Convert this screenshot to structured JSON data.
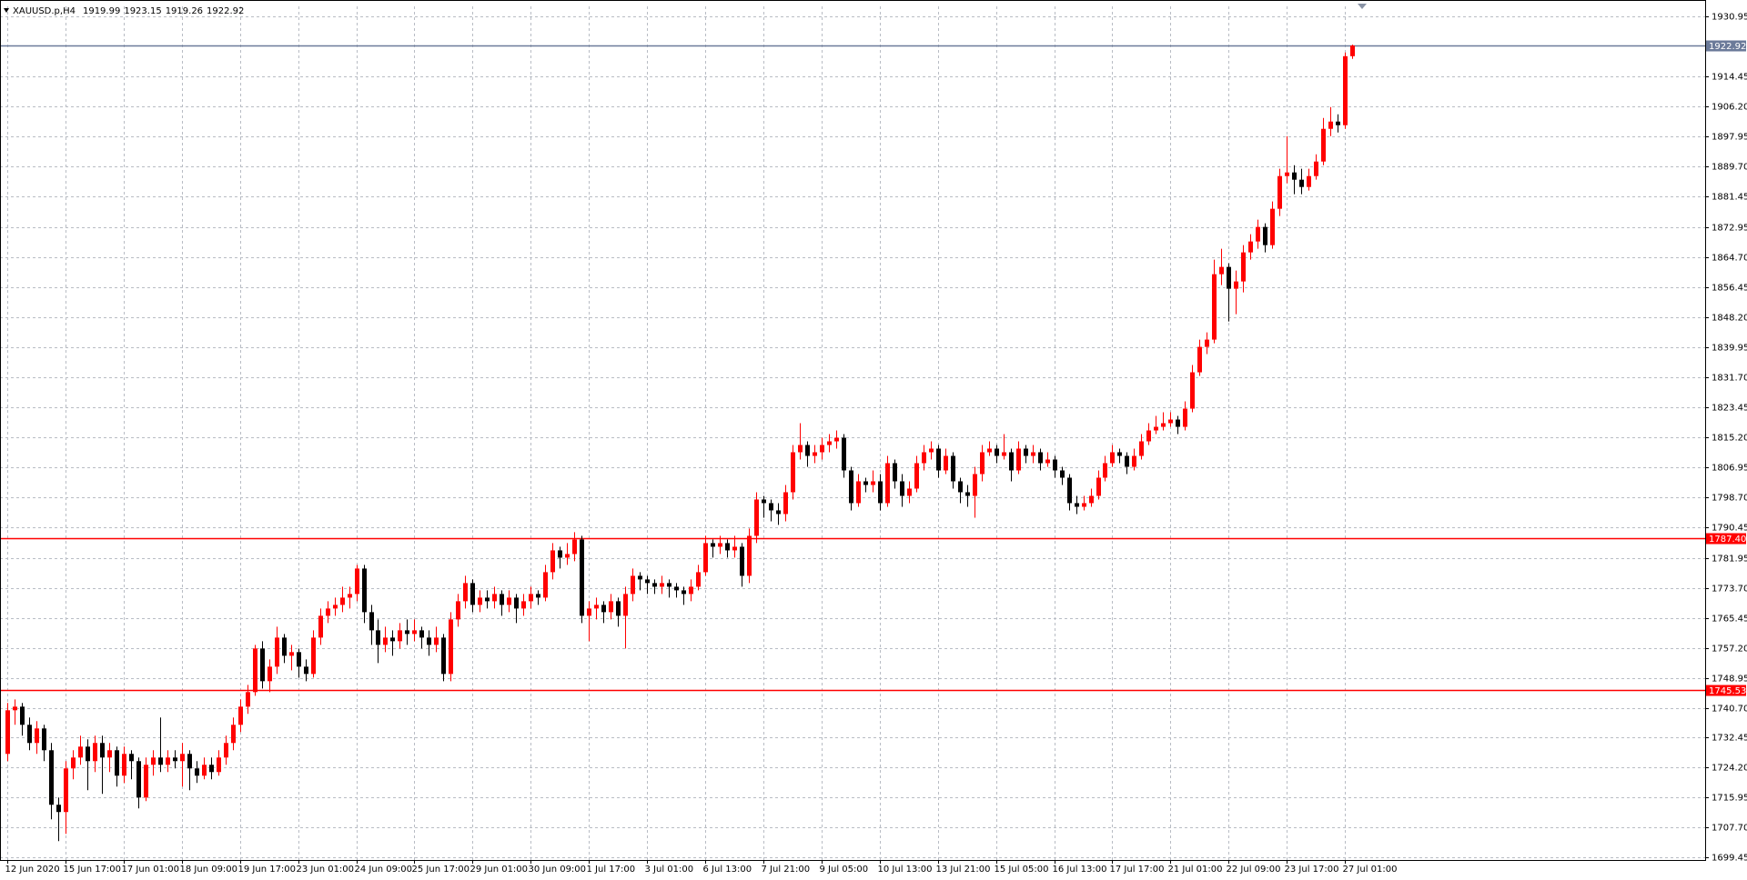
{
  "chart_data": {
    "type": "candlestick",
    "title": "XAUUSD.p,H4",
    "up_color": "#ff0000",
    "down_color": "#000000",
    "grid": true,
    "ylim": [
      1698.8,
      1933.7
    ],
    "yticks": [
      1930.95,
      1914.45,
      {
        "value": 1906.2,
        "label": "1906.20"
      },
      1897.95,
      {
        "value": 1889.7,
        "label": "1889.70"
      },
      1881.45,
      1872.95,
      {
        "value": 1864.7,
        "label": "1864.70"
      },
      1856.45,
      {
        "value": 1848.2,
        "label": "1848.20"
      },
      1839.95,
      {
        "value": 1831.7,
        "label": "1831.70"
      },
      1823.45,
      {
        "value": 1815.2,
        "label": "1815.20"
      },
      1806.95,
      {
        "value": 1798.7,
        "label": "1798.70"
      },
      1790.45,
      1781.95,
      {
        "value": 1773.7,
        "label": "1773.70"
      },
      1765.45,
      {
        "value": 1757.2,
        "label": "1757.20"
      },
      1748.95,
      {
        "value": 1740.7,
        "label": "1740.70"
      },
      1732.45,
      {
        "value": 1724.2,
        "label": "1724.20"
      },
      1715.95,
      {
        "value": 1707.7,
        "label": "1707.70"
      },
      1699.45
    ],
    "levels": [
      {
        "value": 1922.92,
        "label": "1922.92",
        "color": "#6b7a99"
      },
      {
        "value": 1787.4,
        "label": "1787.40",
        "color": "#ff0000"
      },
      {
        "value": 1745.53,
        "label": "1745.53",
        "color": "#ff0000"
      }
    ],
    "categories": [
      "12 Jun 2020",
      null,
      null,
      null,
      null,
      null,
      null,
      null,
      "15 Jun 17:00",
      null,
      null,
      null,
      null,
      null,
      null,
      null,
      "17 Jun 01:00",
      null,
      null,
      null,
      null,
      null,
      null,
      null,
      "18 Jun 09:00",
      null,
      null,
      null,
      null,
      null,
      null,
      null,
      "19 Jun 17:00",
      null,
      null,
      null,
      null,
      null,
      null,
      null,
      "23 Jun 01:00",
      null,
      null,
      null,
      null,
      null,
      null,
      null,
      "24 Jun 09:00",
      null,
      null,
      null,
      null,
      null,
      null,
      null,
      "25 Jun 17:00",
      null,
      null,
      null,
      null,
      null,
      null,
      null,
      "29 Jun 01:00",
      null,
      null,
      null,
      null,
      null,
      null,
      null,
      "30 Jun 09:00",
      null,
      null,
      null,
      null,
      null,
      null,
      null,
      "1 Jul 17:00",
      null,
      null,
      null,
      null,
      null,
      null,
      null,
      "3 Jul 01:00",
      null,
      null,
      null,
      null,
      null,
      null,
      null,
      "6 Jul 13:00",
      null,
      null,
      null,
      null,
      null,
      null,
      null,
      "7 Jul 21:00",
      null,
      null,
      null,
      null,
      null,
      null,
      null,
      "9 Jul 05:00",
      null,
      null,
      null,
      null,
      null,
      null,
      null,
      "10 Jul 13:00",
      null,
      null,
      null,
      null,
      null,
      null,
      null,
      "13 Jul 21:00",
      null,
      null,
      null,
      null,
      null,
      null,
      null,
      "15 Jul 05:00",
      null,
      null,
      null,
      null,
      null,
      null,
      null,
      "16 Jul 13:00",
      null,
      null,
      null,
      null,
      null,
      null,
      null,
      "17 Jul 17:00",
      null,
      null,
      null,
      null,
      null,
      null,
      null,
      "21 Jul 01:00",
      null,
      null,
      null,
      null,
      null,
      null,
      null,
      "22 Jul 09:00",
      null,
      null,
      null,
      null,
      null,
      null,
      null,
      "23 Jul 17:00",
      null,
      null,
      null,
      null,
      null,
      null,
      null,
      "27 Jul 01:00",
      null
    ],
    "candles": [
      [
        1728,
        1742,
        1726,
        1740
      ],
      [
        1740,
        1743,
        1736,
        1741
      ],
      [
        1741,
        1742,
        1733,
        1736
      ],
      [
        1736,
        1738,
        1729,
        1731
      ],
      [
        1731,
        1737,
        1728,
        1735
      ],
      [
        1735,
        1736,
        1726,
        1729
      ],
      [
        1729,
        1731,
        1710,
        1714
      ],
      [
        1714,
        1716,
        1704,
        1712
      ],
      [
        1712,
        1726,
        1706,
        1724
      ],
      [
        1724,
        1729,
        1721,
        1727
      ],
      [
        1727,
        1733,
        1725,
        1730
      ],
      [
        1730,
        1732,
        1718,
        1726
      ],
      [
        1726,
        1733,
        1723,
        1731
      ],
      [
        1731,
        1733,
        1717,
        1727
      ],
      [
        1727,
        1731,
        1723,
        1729
      ],
      [
        1729,
        1730,
        1719,
        1722
      ],
      [
        1722,
        1730,
        1720,
        1728
      ],
      [
        1728,
        1729,
        1721,
        1726
      ],
      [
        1726,
        1727,
        1713,
        1716
      ],
      [
        1716,
        1727,
        1715,
        1725
      ],
      [
        1725,
        1729,
        1722,
        1727
      ],
      [
        1727,
        1738,
        1723,
        1725
      ],
      [
        1725,
        1729,
        1723,
        1727
      ],
      [
        1727,
        1729,
        1724,
        1726
      ],
      [
        1726,
        1731,
        1719,
        1728
      ],
      [
        1728,
        1729,
        1718,
        1724
      ],
      [
        1724,
        1726,
        1720,
        1722
      ],
      [
        1722,
        1727,
        1721,
        1725
      ],
      [
        1725,
        1727,
        1721,
        1723
      ],
      [
        1723,
        1729,
        1722,
        1727
      ],
      [
        1727,
        1733,
        1725,
        1731
      ],
      [
        1731,
        1738,
        1729,
        1736
      ],
      [
        1736,
        1743,
        1734,
        1741
      ],
      [
        1741,
        1747,
        1739,
        1745
      ],
      [
        1745,
        1758,
        1744,
        1757
      ],
      [
        1757,
        1759,
        1746,
        1748
      ],
      [
        1748,
        1754,
        1745,
        1752
      ],
      [
        1752,
        1763,
        1750,
        1760
      ],
      [
        1760,
        1761,
        1753,
        1755
      ],
      [
        1755,
        1758,
        1751,
        1756
      ],
      [
        1756,
        1757,
        1749,
        1752
      ],
      [
        1752,
        1754,
        1748,
        1750
      ],
      [
        1750,
        1762,
        1749,
        1760
      ],
      [
        1760,
        1768,
        1758,
        1766
      ],
      [
        1766,
        1770,
        1764,
        1768
      ],
      [
        1768,
        1771,
        1766,
        1769
      ],
      [
        1769,
        1774,
        1767,
        1771
      ],
      [
        1771,
        1774,
        1768,
        1772
      ],
      [
        1772,
        1780,
        1770,
        1779
      ],
      [
        1779,
        1780,
        1764,
        1767
      ],
      [
        1767,
        1769,
        1758,
        1762
      ],
      [
        1762,
        1765,
        1753,
        1758
      ],
      [
        1758,
        1763,
        1756,
        1760
      ],
      [
        1760,
        1762,
        1755,
        1759
      ],
      [
        1759,
        1764,
        1757,
        1762
      ],
      [
        1762,
        1765,
        1758,
        1761
      ],
      [
        1761,
        1765,
        1759,
        1762
      ],
      [
        1762,
        1763,
        1757,
        1760
      ],
      [
        1760,
        1762,
        1755,
        1758
      ],
      [
        1758,
        1763,
        1756,
        1760
      ],
      [
        1760,
        1761,
        1748,
        1750
      ],
      [
        1750,
        1767,
        1748,
        1765
      ],
      [
        1765,
        1772,
        1763,
        1770
      ],
      [
        1770,
        1777,
        1768,
        1775
      ],
      [
        1775,
        1776,
        1767,
        1769
      ],
      [
        1769,
        1773,
        1767,
        1771
      ],
      [
        1771,
        1773,
        1768,
        1770
      ],
      [
        1770,
        1774,
        1768,
        1772
      ],
      [
        1772,
        1773,
        1766,
        1769
      ],
      [
        1769,
        1773,
        1767,
        1771
      ],
      [
        1771,
        1772,
        1764,
        1768
      ],
      [
        1768,
        1772,
        1766,
        1770
      ],
      [
        1770,
        1774,
        1768,
        1772
      ],
      [
        1772,
        1773,
        1769,
        1771
      ],
      [
        1771,
        1780,
        1770,
        1778
      ],
      [
        1778,
        1786,
        1776,
        1784
      ],
      [
        1784,
        1785,
        1779,
        1782
      ],
      [
        1782,
        1786,
        1780,
        1783
      ],
      [
        1783,
        1789,
        1781,
        1787
      ],
      [
        1787,
        1788,
        1764,
        1766
      ],
      [
        1766,
        1770,
        1759,
        1768
      ],
      [
        1768,
        1771,
        1765,
        1769
      ],
      [
        1769,
        1770,
        1764,
        1767
      ],
      [
        1767,
        1772,
        1765,
        1770
      ],
      [
        1770,
        1771,
        1763,
        1766
      ],
      [
        1766,
        1774,
        1757,
        1772
      ],
      [
        1772,
        1779,
        1770,
        1777
      ],
      [
        1777,
        1778,
        1773,
        1776
      ],
      [
        1776,
        1777,
        1772,
        1775
      ],
      [
        1775,
        1776,
        1772,
        1774
      ],
      [
        1774,
        1777,
        1772,
        1775
      ],
      [
        1775,
        1776,
        1771,
        1774
      ],
      [
        1774,
        1775,
        1771,
        1773
      ],
      [
        1773,
        1774,
        1769,
        1772
      ],
      [
        1772,
        1776,
        1770,
        1774
      ],
      [
        1774,
        1780,
        1773,
        1778
      ],
      [
        1778,
        1788,
        1777,
        1786
      ],
      [
        1786,
        1787,
        1782,
        1785
      ],
      [
        1785,
        1788,
        1783,
        1786
      ],
      [
        1786,
        1787,
        1782,
        1784
      ],
      [
        1784,
        1788,
        1782,
        1785
      ],
      [
        1785,
        1786,
        1774,
        1777
      ],
      [
        1777,
        1790,
        1775,
        1788
      ],
      [
        1788,
        1800,
        1786,
        1798
      ],
      [
        1798,
        1799,
        1793,
        1797
      ],
      [
        1797,
        1798,
        1792,
        1795
      ],
      [
        1795,
        1797,
        1791,
        1794
      ],
      [
        1794,
        1802,
        1792,
        1800
      ],
      [
        1800,
        1813,
        1798,
        1811
      ],
      [
        1811,
        1819,
        1809,
        1813
      ],
      [
        1813,
        1814,
        1807,
        1810
      ],
      [
        1810,
        1813,
        1808,
        1811
      ],
      [
        1811,
        1815,
        1809,
        1813
      ],
      [
        1813,
        1816,
        1811,
        1814
      ],
      [
        1814,
        1817,
        1812,
        1815
      ],
      [
        1815,
        1816,
        1804,
        1806
      ],
      [
        1806,
        1807,
        1795,
        1797
      ],
      [
        1797,
        1805,
        1796,
        1803
      ],
      [
        1803,
        1804,
        1800,
        1802
      ],
      [
        1802,
        1806,
        1800,
        1803
      ],
      [
        1803,
        1805,
        1795,
        1797
      ],
      [
        1797,
        1810,
        1796,
        1808
      ],
      [
        1808,
        1809,
        1801,
        1803
      ],
      [
        1803,
        1805,
        1796,
        1799
      ],
      [
        1799,
        1803,
        1797,
        1801
      ],
      [
        1801,
        1810,
        1800,
        1808
      ],
      [
        1808,
        1813,
        1806,
        1811
      ],
      [
        1811,
        1814,
        1809,
        1812
      ],
      [
        1812,
        1813,
        1804,
        1806
      ],
      [
        1806,
        1812,
        1805,
        1810
      ],
      [
        1810,
        1811,
        1801,
        1803
      ],
      [
        1803,
        1804,
        1797,
        1800
      ],
      [
        1800,
        1802,
        1796,
        1799
      ],
      [
        1799,
        1807,
        1793,
        1805
      ],
      [
        1805,
        1813,
        1803,
        1811
      ],
      [
        1811,
        1814,
        1810,
        1812
      ],
      [
        1812,
        1813,
        1808,
        1810
      ],
      [
        1810,
        1816,
        1809,
        1811
      ],
      [
        1811,
        1812,
        1803,
        1806
      ],
      [
        1806,
        1814,
        1805,
        1812
      ],
      [
        1812,
        1813,
        1808,
        1810
      ],
      [
        1810,
        1813,
        1808,
        1811
      ],
      [
        1811,
        1812,
        1806,
        1808
      ],
      [
        1808,
        1811,
        1807,
        1809
      ],
      [
        1809,
        1810,
        1804,
        1806
      ],
      [
        1806,
        1807,
        1802,
        1804
      ],
      [
        1804,
        1805,
        1795,
        1797
      ],
      [
        1797,
        1799,
        1794,
        1796
      ],
      [
        1796,
        1799,
        1795,
        1797
      ],
      [
        1797,
        1801,
        1796,
        1799
      ],
      [
        1799,
        1806,
        1798,
        1804
      ],
      [
        1804,
        1810,
        1803,
        1808
      ],
      [
        1808,
        1813,
        1807,
        1811
      ],
      [
        1811,
        1812,
        1808,
        1810
      ],
      [
        1810,
        1811,
        1805,
        1807
      ],
      [
        1807,
        1812,
        1806,
        1810
      ],
      [
        1810,
        1816,
        1809,
        1814
      ],
      [
        1814,
        1819,
        1813,
        1817
      ],
      [
        1817,
        1821,
        1816,
        1818
      ],
      [
        1818,
        1822,
        1817,
        1819
      ],
      [
        1819,
        1822,
        1818,
        1820
      ],
      [
        1820,
        1821,
        1816,
        1818
      ],
      [
        1818,
        1825,
        1817,
        1823
      ],
      [
        1823,
        1835,
        1822,
        1833
      ],
      [
        1833,
        1842,
        1832,
        1840
      ],
      [
        1840,
        1844,
        1838,
        1842
      ],
      [
        1842,
        1864,
        1841,
        1860
      ],
      [
        1860,
        1867,
        1857,
        1862
      ],
      [
        1862,
        1863,
        1847,
        1856
      ],
      [
        1856,
        1861,
        1849,
        1858
      ],
      [
        1858,
        1868,
        1855,
        1866
      ],
      [
        1866,
        1871,
        1864,
        1869
      ],
      [
        1869,
        1875,
        1867,
        1873
      ],
      [
        1873,
        1874,
        1866,
        1868
      ],
      [
        1868,
        1880,
        1867,
        1878
      ],
      [
        1878,
        1889,
        1876,
        1887
      ],
      [
        1887,
        1898,
        1885,
        1888
      ],
      [
        1888,
        1890,
        1882,
        1886
      ],
      [
        1886,
        1889,
        1882,
        1884
      ],
      [
        1884,
        1889,
        1883,
        1887
      ],
      [
        1887,
        1893,
        1886,
        1891
      ],
      [
        1891,
        1903,
        1890,
        1900
      ],
      [
        1900,
        1906,
        1898,
        1902
      ],
      [
        1902,
        1904,
        1899,
        1901
      ],
      [
        1901,
        1921,
        1900,
        1919.99
      ],
      [
        1919.99,
        1923.15,
        1919.26,
        1922.92
      ]
    ]
  }
}
